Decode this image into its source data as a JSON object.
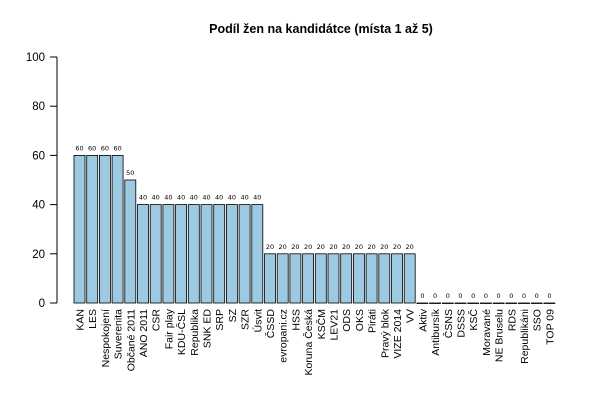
{
  "chart_data": {
    "type": "bar",
    "title": "Podíl žen na kandidátce (místa 1 až 5)",
    "xlabel": "",
    "ylabel": "",
    "ylim": [
      0,
      100
    ],
    "yticks": [
      0,
      20,
      40,
      60,
      80,
      100
    ],
    "grid": false,
    "legend": "none",
    "bar_color": "#9ECAE1",
    "categories": [
      "KAN",
      "LES",
      "Nespokojení",
      "Suverenita",
      "Občané 2011",
      "ANO 2011",
      "CSR",
      "Fair play",
      "KDU-ČSL",
      "Republika",
      "SNK ED",
      "SRP",
      "SZ",
      "SZR",
      "Úsvit",
      "ČSSD",
      "evropani.cz",
      "HSS",
      "Koruna Česká",
      "KSČM",
      "LEV21",
      "ODS",
      "OKS",
      "Piráti",
      "Pravý blok",
      "VIZE 2014",
      "VV",
      "Aktiv",
      "Antibursík",
      "ČSNS",
      "DSSS",
      "KSČ",
      "Moravané",
      "NE Bruselu",
      "RDS",
      "Republikáni",
      "SSO",
      "TOP 09"
    ],
    "values": [
      60,
      60,
      60,
      60,
      50,
      40,
      40,
      40,
      40,
      40,
      40,
      40,
      40,
      40,
      40,
      20,
      20,
      20,
      20,
      20,
      20,
      20,
      20,
      20,
      20,
      20,
      20,
      0,
      0,
      0,
      0,
      0,
      0,
      0,
      0,
      0,
      0,
      0
    ]
  }
}
